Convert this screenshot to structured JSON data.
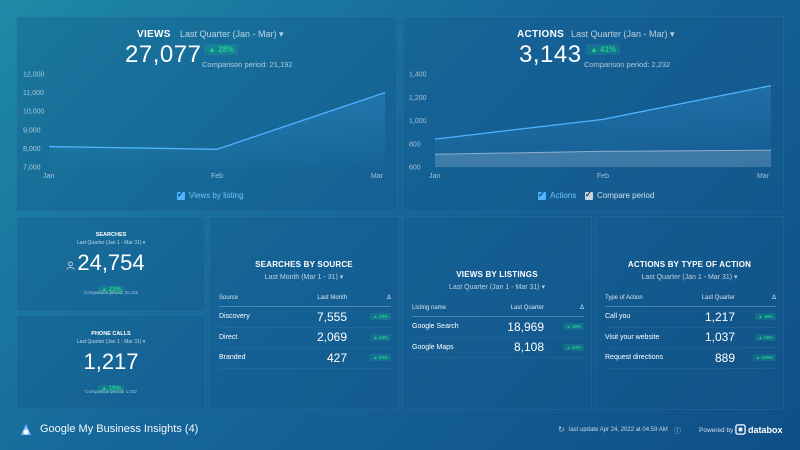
{
  "colors": {
    "accent": "#4fb3ff",
    "positive": "#1fd08a",
    "compare": "#c9d3dc"
  },
  "views": {
    "title": "VIEWS",
    "period": "Last Quarter (Jan - Mar)",
    "value": "27,077",
    "change": "▲ 28%",
    "comparison": "Comparison period: 21,192",
    "legend": "Views by listing"
  },
  "actions": {
    "title": "ACTIONS",
    "period": "Last Quarter (Jan - Mar)",
    "value": "3,143",
    "change": "▲ 41%",
    "comparison": "Comparison period: 2,232",
    "legend_actions": "Actions",
    "legend_compare": "Compare period"
  },
  "chart_data": [
    {
      "type": "line",
      "categories": [
        "Jan",
        "Feb",
        "Mar"
      ],
      "yticks": [
        "12,000",
        "11,000",
        "10,000",
        "9,000",
        "8,000",
        "7,000"
      ],
      "ylim": [
        7000,
        12000
      ],
      "series": [
        {
          "name": "Views by listing",
          "values": [
            8100,
            7950,
            11000
          ]
        }
      ]
    },
    {
      "type": "area",
      "categories": [
        "Jan",
        "Feb",
        "Mar"
      ],
      "yticks": [
        "1,400",
        "1,200",
        "1,000",
        "800",
        "600"
      ],
      "ylim": [
        600,
        1400
      ],
      "series": [
        {
          "name": "Actions",
          "values": [
            840,
            1010,
            1300
          ]
        },
        {
          "name": "Compare period",
          "values": [
            710,
            735,
            745
          ]
        }
      ]
    }
  ],
  "searches": {
    "title": "SEARCHES",
    "period": "Last Quarter (Jan 1 - Mar 31)",
    "value": "24,754",
    "change": "▲ 23%",
    "comparison": "Comparison period: 20,116"
  },
  "calls": {
    "title": "PHONE CALLS",
    "period": "Last Quarter (Jan 1 - Mar 31)",
    "value": "1,217",
    "change": "▲ 19%",
    "comparison": "Comparison period: 1,022"
  },
  "by_source": {
    "title": "SEARCHES BY SOURCE",
    "period": "Last Month (Mar 1 - 31)",
    "headers": [
      "Source",
      "Last Month",
      "Δ"
    ],
    "rows": [
      {
        "label": "Discovery",
        "value": "7,555",
        "change": "▲ 28%"
      },
      {
        "label": "Direct",
        "value": "2,069",
        "change": "▲ 44%"
      },
      {
        "label": "Branded",
        "value": "427",
        "change": "▲ 99%"
      }
    ]
  },
  "by_listing": {
    "title": "VIEWS BY LISTINGS",
    "period": "Last Quarter (Jan 1 - Mar 31)",
    "headers": [
      "Listing name",
      "Last Quarter",
      "Δ"
    ],
    "rows": [
      {
        "label": "Google Search",
        "value": "18,969",
        "change": "▲ 19%"
      },
      {
        "label": "Google Maps",
        "value": "8,108",
        "change": "▲ 54%"
      }
    ]
  },
  "by_type": {
    "title": "ACTIONS BY TYPE OF ACTION",
    "period": "Last Quarter (Jan 1 - Mar 31)",
    "headers": [
      "Type of Action",
      "Last Quarter",
      "Δ"
    ],
    "rows": [
      {
        "label": "Call you",
        "value": "1,217",
        "change": "▲ 19%"
      },
      {
        "label": "Visit your website",
        "value": "1,037",
        "change": "▲ 28%"
      },
      {
        "label": "Request directions",
        "value": "889",
        "change": "▲ 155%"
      }
    ]
  },
  "footer": {
    "title": "Google My Business Insights (4)",
    "update": "last update Apr 24, 2022 at 04:59 AM",
    "powered": "Powered by",
    "brand": "databox"
  }
}
